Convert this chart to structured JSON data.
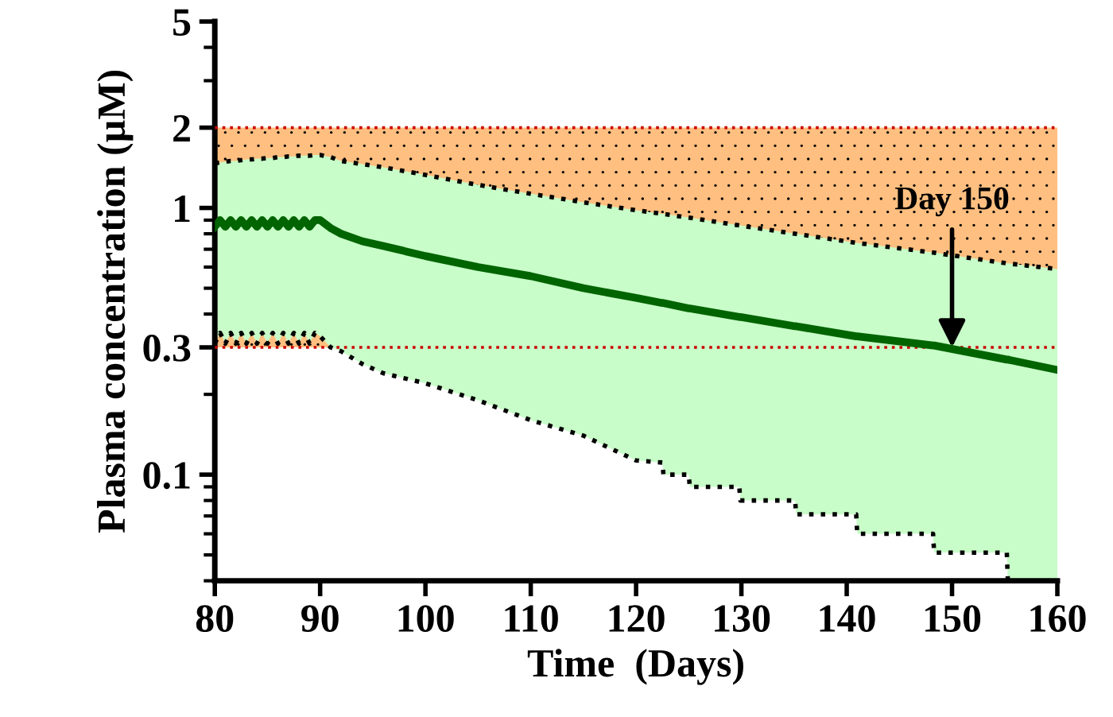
{
  "chart_data": {
    "type": "line",
    "xlabel": "Time  (Days)",
    "ylabel": "Plasma concentration (µM)",
    "log": "y",
    "xlim": [
      80,
      160
    ],
    "xticks": [
      80,
      90,
      100,
      110,
      120,
      130,
      140,
      150,
      160
    ],
    "ylim": [
      0.04,
      5
    ],
    "yticks": [
      0.1,
      0.3,
      1,
      2,
      5
    ],
    "grid": false,
    "legend": false,
    "series": [
      {
        "color": "#006400",
        "line_style": "solid",
        "x": [
          80,
          80.5,
          81,
          81.5,
          82,
          82.5,
          83,
          83.5,
          84,
          84.5,
          85,
          85.5,
          86,
          86.5,
          87,
          87.5,
          88,
          88.5,
          89,
          89.5,
          90,
          91,
          92,
          94,
          96,
          100,
          105,
          110,
          115,
          120,
          122.5,
          122.6,
          125,
          125.1,
          129.8,
          129.9,
          135.1,
          135.2,
          140.9,
          141,
          148.2,
          148.3,
          155.2,
          155.3,
          160
        ],
        "values": [
          0.85,
          0.9,
          0.85,
          0.9,
          0.85,
          0.9,
          0.85,
          0.9,
          0.85,
          0.9,
          0.85,
          0.9,
          0.85,
          0.9,
          0.85,
          0.9,
          0.85,
          0.9,
          0.85,
          0.9,
          0.9,
          0.84,
          0.8,
          0.75,
          0.72,
          0.66,
          0.6,
          0.555,
          0.5,
          0.46,
          0.44,
          0.44,
          0.42,
          0.42,
          0.39,
          0.39,
          0.36,
          0.36,
          0.33,
          0.33,
          0.305,
          0.305,
          0.27,
          0.27,
          0.247
        ],
        "upper": [
          1.47,
          1.48,
          1.49,
          1.5,
          1.5,
          1.51,
          1.52,
          1.52,
          1.53,
          1.53,
          1.54,
          1.54,
          1.55,
          1.55,
          1.56,
          1.56,
          1.57,
          1.57,
          1.57,
          1.58,
          1.58,
          1.55,
          1.5,
          1.46,
          1.42,
          1.33,
          1.22,
          1.13,
          1.05,
          0.98,
          0.95,
          0.95,
          0.92,
          0.92,
          0.86,
          0.86,
          0.8,
          0.8,
          0.74,
          0.74,
          0.68,
          0.68,
          0.62,
          0.62,
          0.59
        ],
        "lower": [
          0.31,
          0.34,
          0.31,
          0.34,
          0.31,
          0.34,
          0.31,
          0.34,
          0.31,
          0.34,
          0.31,
          0.34,
          0.31,
          0.34,
          0.31,
          0.34,
          0.31,
          0.34,
          0.31,
          0.34,
          0.33,
          0.3,
          0.29,
          0.26,
          0.24,
          0.22,
          0.19,
          0.16,
          0.14,
          0.113,
          0.111,
          0.1,
          0.1,
          0.09,
          0.09,
          0.08,
          0.08,
          0.071,
          0.071,
          0.06,
          0.06,
          0.051,
          0.051,
          0.04,
          0.04
        ]
      },
      {
        "color": "#000000",
        "line_style": "dotted",
        "x": [
          80,
          80.5,
          81,
          81.5,
          82,
          82.5,
          83,
          83.5,
          84,
          84.5,
          85,
          85.5,
          86,
          86.5,
          87,
          87.5,
          88,
          88.5,
          89,
          89.5,
          90,
          91,
          92,
          94,
          96,
          100,
          105,
          110,
          115,
          120,
          122.5,
          125,
          129.8,
          135.1,
          140.9,
          148.2,
          155.2,
          160
        ],
        "values": [
          1.47,
          1.48,
          1.49,
          1.5,
          1.5,
          1.51,
          1.52,
          1.52,
          1.53,
          1.53,
          1.54,
          1.54,
          1.55,
          1.55,
          1.56,
          1.56,
          1.57,
          1.57,
          1.57,
          1.58,
          1.58,
          1.55,
          1.5,
          1.46,
          1.42,
          1.33,
          1.22,
          1.13,
          1.05,
          0.98,
          0.95,
          0.92,
          0.86,
          0.8,
          0.74,
          0.68,
          0.62,
          0.59
        ]
      },
      {
        "color": "#000000",
        "line_style": "dotted",
        "x": [
          80,
          80.5,
          81,
          81.5,
          82,
          82.5,
          83,
          83.5,
          84,
          84.5,
          85,
          85.5,
          86,
          86.5,
          87,
          87.5,
          88,
          88.5,
          89,
          89.5,
          90,
          91,
          92,
          94,
          96,
          100,
          105,
          110,
          115,
          120,
          122.5,
          122.6,
          125,
          125.1,
          129.8,
          129.9,
          135.1,
          135.2,
          140.9,
          141,
          148.2,
          148.3,
          155.2,
          155.3
        ],
        "values": [
          0.31,
          0.34,
          0.31,
          0.34,
          0.31,
          0.34,
          0.31,
          0.34,
          0.31,
          0.34,
          0.31,
          0.34,
          0.31,
          0.34,
          0.31,
          0.34,
          0.31,
          0.34,
          0.31,
          0.34,
          0.33,
          0.3,
          0.29,
          0.26,
          0.24,
          0.22,
          0.19,
          0.16,
          0.14,
          0.113,
          0.111,
          0.1,
          0.1,
          0.09,
          0.09,
          0.08,
          0.08,
          0.071,
          0.071,
          0.06,
          0.06,
          0.051,
          0.051,
          0.04
        ]
      }
    ],
    "bands": [
      {
        "axis": "y",
        "from": 0.3,
        "to": 2,
        "color": "#ffbf80"
      }
    ],
    "ref_lines": [
      {
        "axis": "y",
        "value": 0.3,
        "color": "#cc0000",
        "line_style": "dotted"
      },
      {
        "axis": "y",
        "value": 2,
        "color": "#cc0000",
        "line_style": "dotted"
      }
    ],
    "annotations": [
      {
        "text": "Day 150",
        "x": 150,
        "y": 0.3
      }
    ]
  }
}
